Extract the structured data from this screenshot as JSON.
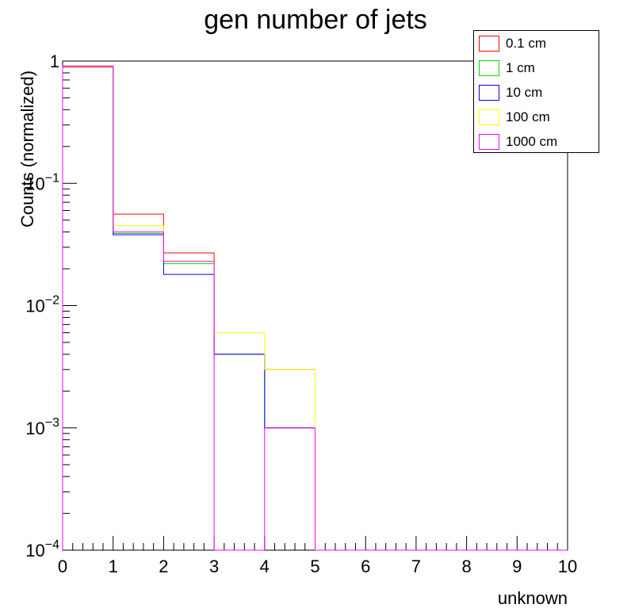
{
  "chart_data": {
    "type": "step-histogram",
    "title": "gen number of jets",
    "xlabel": "unknown",
    "ylabel": "Counts (normalized)",
    "xlim": [
      0,
      10
    ],
    "ylim": [
      0.0001,
      1
    ],
    "yscale": "log",
    "x_ticks": [
      "0",
      "1",
      "2",
      "3",
      "4",
      "5",
      "6",
      "7",
      "8",
      "9",
      "10"
    ],
    "y_ticks": [
      {
        "base": "1",
        "exp": ""
      },
      {
        "base": "10",
        "exp": "−1"
      },
      {
        "base": "10",
        "exp": "−2"
      },
      {
        "base": "10",
        "exp": "−3"
      },
      {
        "base": "10",
        "exp": "−4"
      }
    ],
    "bin_edges": [
      0,
      1,
      2,
      3,
      4,
      5,
      6,
      7,
      8,
      9,
      10
    ],
    "legend_position": "top-right",
    "series": [
      {
        "name": "0.1 cm",
        "color": "#ff0000",
        "values": [
          0.89,
          0.056,
          0.027,
          0.004,
          0.003,
          0,
          0,
          0,
          0,
          0
        ]
      },
      {
        "name": "1 cm",
        "color": "#00dd00",
        "values": [
          0.91,
          0.039,
          0.022,
          0.004,
          0.001,
          0,
          0,
          0,
          0,
          0
        ]
      },
      {
        "name": "10 cm",
        "color": "#0000ff",
        "values": [
          0.91,
          0.038,
          0.018,
          0.004,
          0.001,
          0,
          0,
          0,
          0,
          0
        ]
      },
      {
        "name": "100 cm",
        "color": "#ffff00",
        "values": [
          0.9,
          0.045,
          0.023,
          0.006,
          0.003,
          0,
          0,
          0,
          0,
          0
        ]
      },
      {
        "name": "1000 cm",
        "color": "#ff00ff",
        "values": [
          0.91,
          0.04,
          0.023,
          0.0001,
          0.001,
          0,
          0,
          0,
          0,
          0
        ]
      }
    ]
  }
}
